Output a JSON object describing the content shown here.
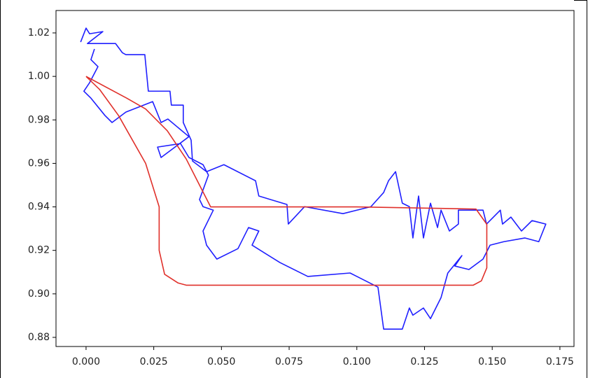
{
  "chart_data": {
    "type": "line",
    "xlim": [
      -0.0111,
      0.1802
    ],
    "ylim": [
      0.8758,
      1.0303
    ],
    "xticks": [
      {
        "value": 0,
        "label": "0.000"
      },
      {
        "value": 0.025,
        "label": "0.025"
      },
      {
        "value": 0.05,
        "label": "0.050"
      },
      {
        "value": 0.075,
        "label": "0.075"
      },
      {
        "value": 0.1,
        "label": "0.100"
      },
      {
        "value": 0.125,
        "label": "0.125"
      },
      {
        "value": 0.15,
        "label": "0.150"
      },
      {
        "value": 0.175,
        "label": "0.175"
      }
    ],
    "yticks": [
      0.88,
      {
        "value": 0.9,
        "label": "0.90"
      },
      0.92,
      0.94,
      0.96,
      0.98,
      {
        "value": 1,
        "label": "1.00"
      },
      1.02
    ],
    "grid": false,
    "series": [
      {
        "color": "#1f1fff",
        "x": [
          -0.002,
          0,
          0.0013,
          0.0062,
          0.0005,
          0.0109,
          0.0134,
          0.0147,
          0.0217,
          0.023,
          0.031,
          0.0315,
          0.0359,
          0.0359,
          0.0388,
          0.0393,
          0.0445,
          0.0509,
          0.0626,
          0.0638,
          0.0742,
          0.0747,
          0.0807,
          0.0949,
          0.1052,
          0.1099,
          0.1117,
          0.1143,
          0.1168,
          0.1194,
          0.1207,
          0.1228,
          0.1246,
          0.1272,
          0.1298,
          0.1311,
          0.1342,
          0.1375,
          0.1375,
          0.1466,
          0.1479,
          0.153,
          0.1538,
          0.1569,
          0.1608,
          0.1647,
          0.1698,
          0.1672,
          0.1621,
          0.1543,
          0.1492,
          0.1466,
          0.1414,
          0.1362,
          0.1388,
          0.1336,
          0.1311,
          0.1272,
          0.1246,
          0.1207,
          0.1194,
          0.1168,
          0.1099,
          0.1078,
          0.0975,
          0.0819,
          0.0716,
          0.0613,
          0.0638,
          0.06,
          0.0561,
          0.0483,
          0.0445,
          0.0432,
          0.047,
          0.0432,
          0.0419,
          0.0452,
          0.0432,
          0.038,
          0.0349,
          0.0264,
          0.0277,
          0.038,
          0.0302,
          0.0277,
          0.0246,
          0.0147,
          0.0096,
          0.007,
          0.0018,
          -0.0008,
          0.0013,
          0.0044,
          0.0018,
          0.0031
        ],
        "values": [
          1.0158,
          1.0222,
          1.0196,
          1.0206,
          1.0151,
          1.0151,
          1.0109,
          1.01,
          1.01,
          0.9932,
          0.9932,
          0.9868,
          0.9868,
          0.9788,
          0.9707,
          0.9611,
          0.9562,
          0.9594,
          0.952,
          0.945,
          0.9411,
          0.9321,
          0.9401,
          0.9369,
          0.9401,
          0.9466,
          0.952,
          0.9562,
          0.9417,
          0.9401,
          0.9257,
          0.945,
          0.9257,
          0.9417,
          0.9305,
          0.9385,
          0.9289,
          0.9321,
          0.9385,
          0.9385,
          0.9321,
          0.9385,
          0.9321,
          0.9353,
          0.9289,
          0.9337,
          0.9321,
          0.924,
          0.9257,
          0.924,
          0.9224,
          0.916,
          0.9112,
          0.9128,
          0.9176,
          0.9096,
          0.8983,
          0.8886,
          0.8935,
          0.8902,
          0.8935,
          0.8838,
          0.8838,
          0.9031,
          0.9096,
          0.908,
          0.9144,
          0.9224,
          0.9289,
          0.9305,
          0.9208,
          0.916,
          0.9224,
          0.9289,
          0.9385,
          0.9401,
          0.9434,
          0.9546,
          0.9594,
          0.9627,
          0.9691,
          0.9675,
          0.9627,
          0.9723,
          0.9804,
          0.9788,
          0.9884,
          0.9836,
          0.9788,
          0.982,
          0.99,
          0.9932,
          0.9971,
          1.0045,
          1.0077,
          1.0126
        ]
      },
      {
        "color": "#e0302a",
        "x": [
          0,
          0.015,
          0.022,
          0.03,
          0.037,
          0.046,
          0.1,
          0.144,
          0.148,
          0.148,
          0.146,
          0.143,
          0.037,
          0.034,
          0.029,
          0.027,
          0.027,
          0.022,
          0.012,
          0.005,
          0
        ],
        "values": [
          1,
          0.99,
          0.985,
          0.975,
          0.962,
          0.94,
          0.94,
          0.939,
          0.932,
          0.912,
          0.906,
          0.904,
          0.904,
          0.905,
          0.909,
          0.92,
          0.94,
          0.96,
          0.982,
          0.994,
          1
        ]
      }
    ]
  }
}
